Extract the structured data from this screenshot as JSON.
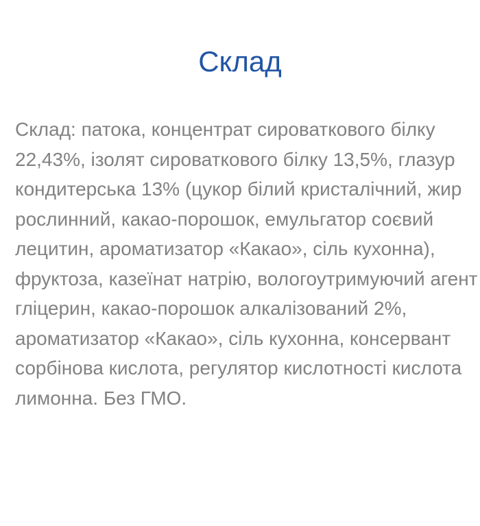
{
  "page": {
    "background_color": "#ffffff",
    "title": {
      "text": "Склад",
      "color": "#2155a5"
    },
    "ingredients": {
      "color": "#828282",
      "lines": [
        "Склад: патока, концентрат сироваткового білку",
        "22,43%, ізолят сироваткового білку 13,5%, глазур",
        "кондитерська 13% (цукор білий кристалічний, жир",
        "рослинний, какао-порошок, емульгатор соєвий",
        "лецитин, ароматизатор «Какао», сіль кухонна),",
        "фруктоза, казеїнат натрію, вологоутримуючий агент",
        "гліцерин, какао-порошок алкалізований 2%,",
        "ароматизатор «Какао», сіль кухонна, консервант",
        "сорбінова кислота, регулятор кислотності кислота",
        "лимонна. Без ГМО."
      ]
    }
  }
}
